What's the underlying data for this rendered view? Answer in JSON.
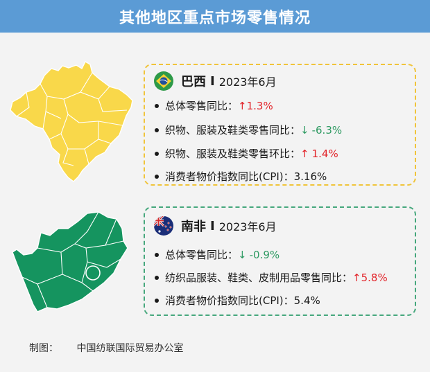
{
  "title": "其他地区重点市场零售情况",
  "brazil": {
    "flag": "brazil-flag",
    "map": "brazil-map",
    "map_color": "#f9d84a",
    "country": "巴西",
    "separator": "I",
    "period": "2023年6月",
    "rows": [
      {
        "label": "总体零售同比：",
        "arrow": "↑",
        "value": "1.3%",
        "trend": "up"
      },
      {
        "label": "织物、服装及鞋类零售同比：",
        "arrow": "↓",
        "value": "-6.3%",
        "trend": "down"
      },
      {
        "label": "织物、服装及鞋类零售环比：",
        "arrow": "↑",
        "value": "1.4%",
        "trend": "up"
      },
      {
        "label": "消费者物价指数同比(CPI)：",
        "arrow": "",
        "value": "3.16%",
        "trend": "none"
      }
    ]
  },
  "south_africa": {
    "flag": "south-africa-flag",
    "map": "south-africa-map",
    "map_color": "#15945f",
    "country": "南非",
    "separator": "I",
    "period": "2023年6月",
    "rows": [
      {
        "label": "总体零售同比：",
        "arrow": "↓",
        "value": "-0.9%",
        "trend": "down"
      },
      {
        "label": "纺织品服装、鞋类、皮制用品零售同比：",
        "arrow": "↑",
        "value": "5.8%",
        "trend": "up"
      },
      {
        "label": "消费者物价指数同比(CPI)：",
        "arrow": "",
        "value": "5.4%",
        "trend": "none"
      }
    ]
  },
  "footer": {
    "label": "制图：",
    "source": "中国纺联国际贸易办公室"
  },
  "colors": {
    "title_bar": "#5b9bd5",
    "brazil_border": "#f0c43a",
    "south_africa_border": "#45a77c",
    "up": "#e2242a",
    "down": "#2e9a62"
  }
}
